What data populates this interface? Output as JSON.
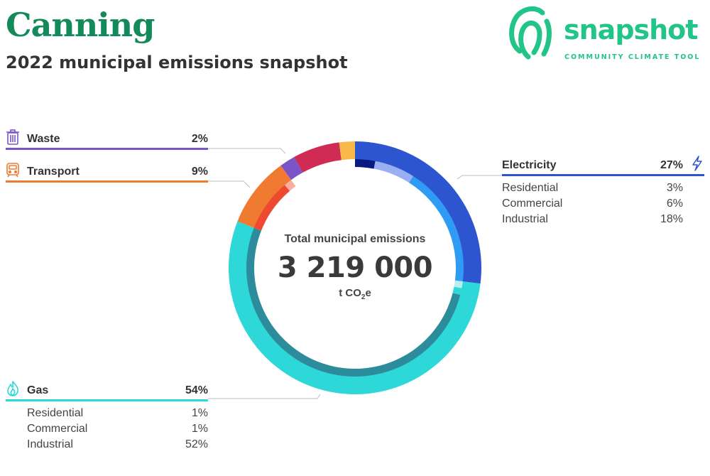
{
  "header": {
    "title": "Canning",
    "subtitle": "2022 municipal emissions snapshot"
  },
  "logo": {
    "word": "snapshot",
    "tagline": "COMMUNITY CLIMATE TOOL",
    "color": "#22c48a"
  },
  "center": {
    "label": "Total municipal emissions",
    "value": "3 219 000",
    "unit_prefix": "t CO",
    "unit_sub": "2",
    "unit_suffix": "e"
  },
  "sectors": {
    "waste": {
      "name": "Waste",
      "pct": "2%",
      "color": "#7a55c8",
      "icon": "bin-icon"
    },
    "transport": {
      "name": "Transport",
      "pct": "9%",
      "color": "#f07b30",
      "icon": "train-icon"
    },
    "electricity": {
      "name": "Electricity",
      "pct": "27%",
      "color": "#2d55d0",
      "icon": "lightning-icon",
      "rows": [
        {
          "label": "Residential",
          "pct": "3%"
        },
        {
          "label": "Commercial",
          "pct": "6%"
        },
        {
          "label": "Industrial",
          "pct": "18%"
        }
      ]
    },
    "gas": {
      "name": "Gas",
      "pct": "54%",
      "color": "#2ed8d8",
      "icon": "flame-icon",
      "rows": [
        {
          "label": "Residential",
          "pct": "1%"
        },
        {
          "label": "Commercial",
          "pct": "1%"
        },
        {
          "label": "Industrial",
          "pct": "52%"
        }
      ]
    }
  },
  "chart_data": {
    "type": "pie",
    "subtype": "nested-donut",
    "total": 3219000,
    "total_unit": "t CO2e",
    "outer_ring": [
      {
        "label": "Electricity",
        "value": 27,
        "color": "#2d55d0"
      },
      {
        "label": "Gas",
        "value": 54,
        "color": "#2ed8d8"
      },
      {
        "label": "Transport",
        "value": 9,
        "color": "#f07b30"
      },
      {
        "label": "Waste",
        "value": 2,
        "color": "#7a55c8"
      },
      {
        "label": "",
        "value": 6,
        "color": "#d02b55"
      },
      {
        "label": "",
        "value": 2,
        "color": "#f9b94a"
      }
    ],
    "inner_ring": [
      {
        "parent": "Electricity",
        "label": "Residential",
        "value": 3,
        "color": "#0a1a80"
      },
      {
        "parent": "Electricity",
        "label": "Commercial",
        "value": 6,
        "color": "#9aaef2"
      },
      {
        "parent": "Electricity",
        "label": "Industrial",
        "value": 18,
        "color": "#2f9bf5"
      },
      {
        "parent": "Gas",
        "label": "Residential",
        "value": 1,
        "color": "#b8eeee"
      },
      {
        "parent": "Gas",
        "label": "Commercial",
        "value": 1,
        "color": "#2ed8d8"
      },
      {
        "parent": "Gas",
        "label": "Industrial",
        "value": 52,
        "color": "#2d8c9c"
      },
      {
        "parent": "Transport",
        "label": "",
        "value": 7.8,
        "color": "#ee4a32"
      },
      {
        "parent": "Transport",
        "label": "",
        "value": 1.2,
        "color": "#f7b0a0"
      },
      {
        "parent": "Waste",
        "label": "",
        "value": 2,
        "color": "#ffffff"
      },
      {
        "parent": "",
        "label": "",
        "value": 6,
        "color": "#ffffff"
      },
      {
        "parent": "",
        "label": "",
        "value": 2,
        "color": "#ffffff"
      }
    ]
  }
}
